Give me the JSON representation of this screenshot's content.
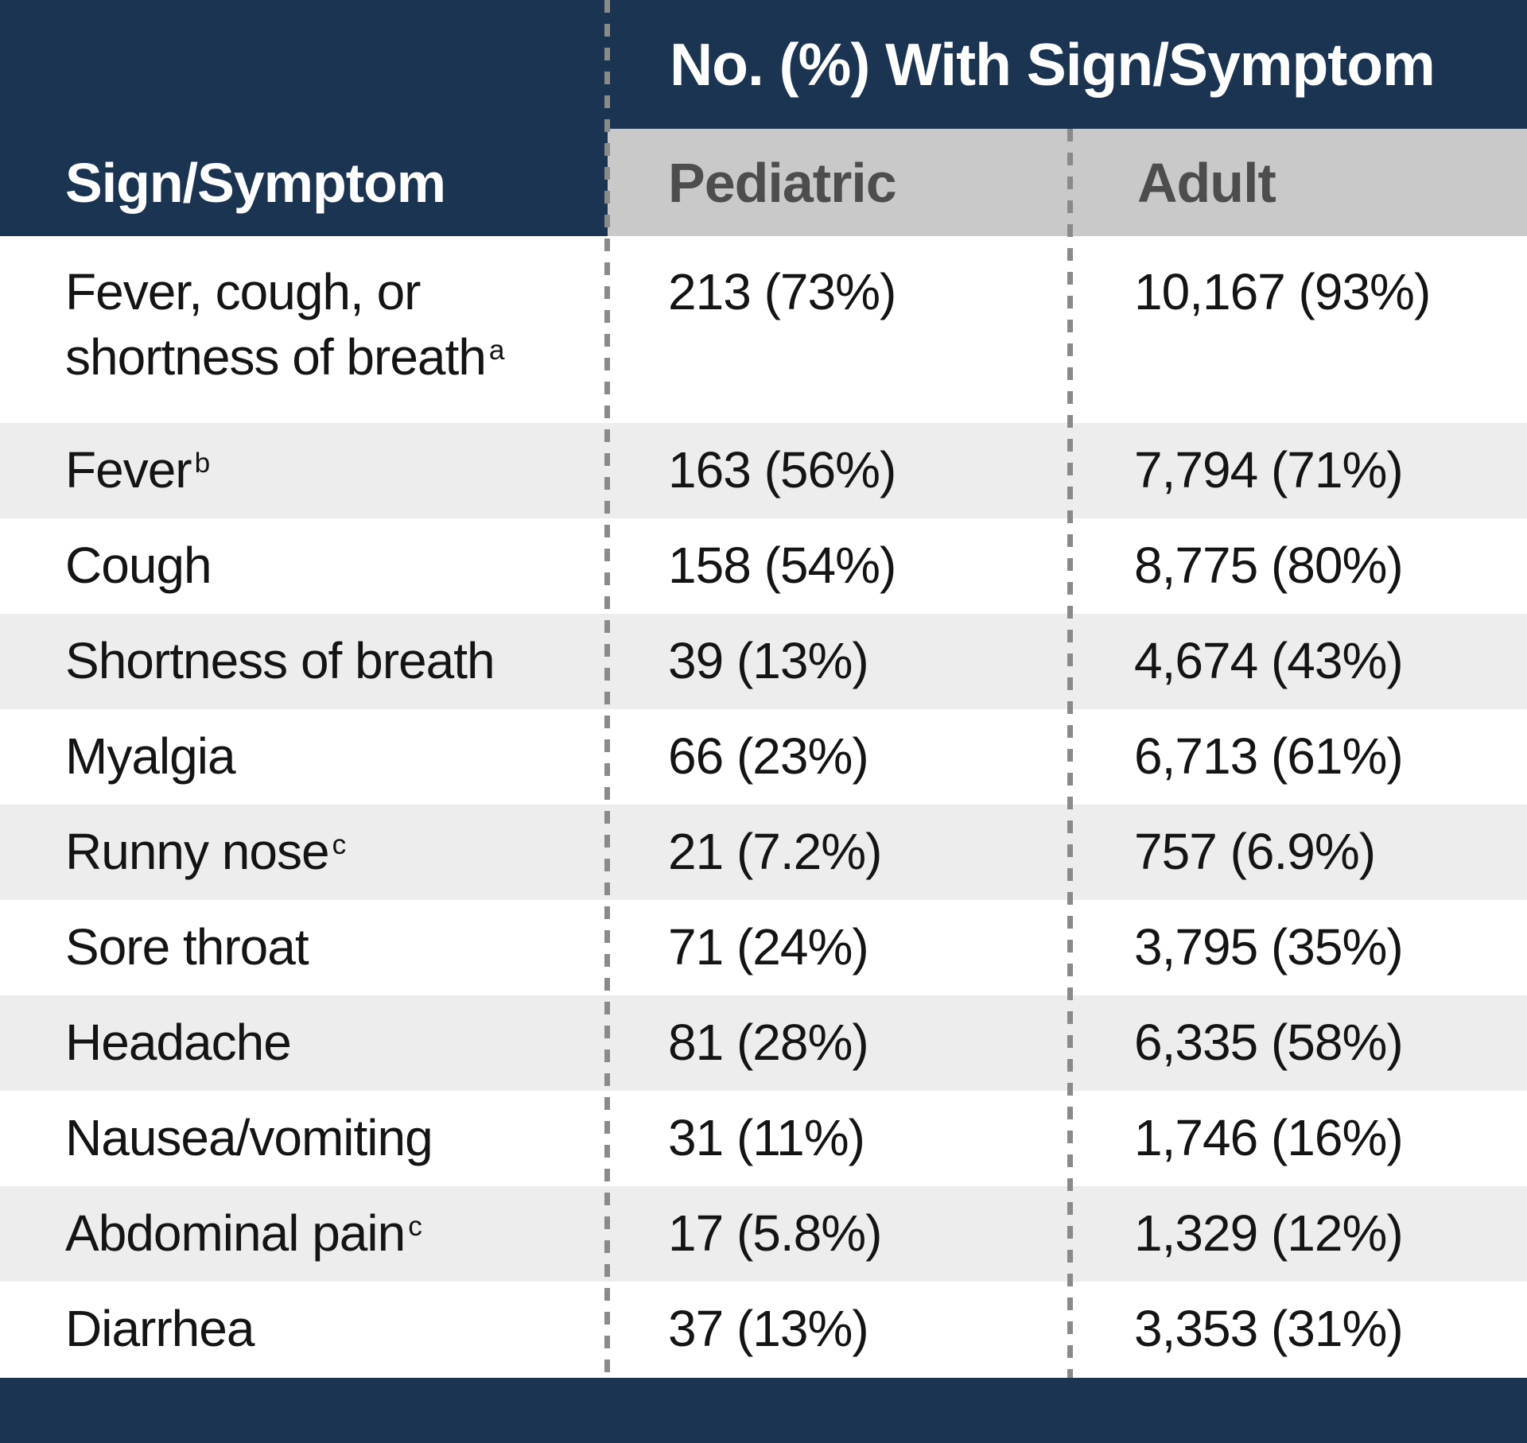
{
  "header": {
    "title": "No. (%) With Sign/Symptom",
    "sign_symptom": "Sign/Symptom",
    "pediatric": "Pediatric",
    "adult": "Adult"
  },
  "colors": {
    "navy_band": "#1b3451",
    "column_header_bg": "#c9c9c9",
    "column_header_text": "#4d4d4d",
    "zebra_row_bg": "#ededed",
    "dashed_divider": "#8a8a8a",
    "body_text": "#141414",
    "header_text": "#ffffff"
  },
  "chart_data": {
    "type": "table",
    "title": "No. (%) With Sign/Symptom",
    "columns": [
      "Sign/Symptom",
      "Pediatric",
      "Adult"
    ],
    "footnote_markers_shown": [
      "a",
      "b",
      "c"
    ],
    "rows": [
      {
        "sign_symptom": "Fever, cough, or shortness of breath",
        "footnote": "a",
        "pediatric": "213 (73%)",
        "adult": "10,167 (93%)"
      },
      {
        "sign_symptom": "Fever",
        "footnote": "b",
        "pediatric": "163 (56%)",
        "adult": "7,794 (71%)"
      },
      {
        "sign_symptom": "Cough",
        "pediatric": "158 (54%)",
        "adult": "8,775 (80%)"
      },
      {
        "sign_symptom": "Shortness of breath",
        "pediatric": "39 (13%)",
        "adult": "4,674 (43%)"
      },
      {
        "sign_symptom": "Myalgia",
        "pediatric": "66 (23%)",
        "adult": "6,713 (61%)"
      },
      {
        "sign_symptom": "Runny nose",
        "footnote": "c",
        "pediatric": "21 (7.2%)",
        "adult": "757 (6.9%)"
      },
      {
        "sign_symptom": "Sore throat",
        "pediatric": "71 (24%)",
        "adult": "3,795 (35%)"
      },
      {
        "sign_symptom": "Headache",
        "pediatric": "81 (28%)",
        "adult": "6,335 (58%)"
      },
      {
        "sign_symptom": "Nausea/vomiting",
        "pediatric": "31 (11%)",
        "adult": "1,746 (16%)"
      },
      {
        "sign_symptom": "Abdominal pain",
        "footnote": "c",
        "pediatric": "17 (5.8%)",
        "adult": "1,329 (12%)"
      },
      {
        "sign_symptom": "Diarrhea",
        "pediatric": "37 (13%)",
        "adult": "3,353 (31%)"
      }
    ]
  }
}
